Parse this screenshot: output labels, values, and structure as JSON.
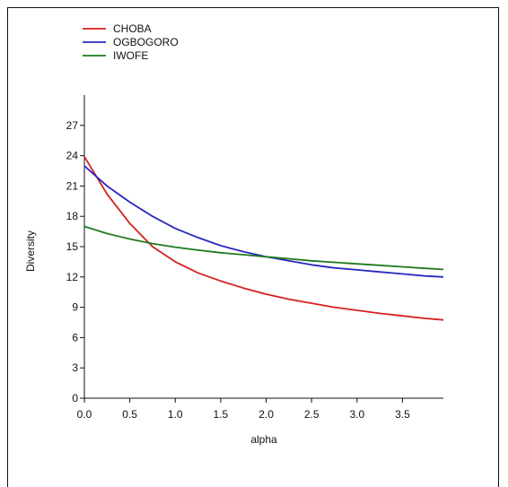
{
  "chart_data": {
    "type": "line",
    "xlabel": "alpha",
    "ylabel": "Diversity",
    "xlim": [
      0,
      3.95
    ],
    "ylim": [
      0,
      30
    ],
    "x_ticks": [
      0.0,
      0.5,
      1.0,
      1.5,
      2.0,
      2.5,
      3.0,
      3.5
    ],
    "x_tick_labels": [
      "0.0",
      "0.5",
      "1.0",
      "1.5",
      "2.0",
      "2.5",
      "3.0",
      "3.5"
    ],
    "y_ticks": [
      0,
      3,
      6,
      9,
      12,
      15,
      18,
      21,
      24,
      27
    ],
    "y_tick_labels": [
      "0",
      "3",
      "6",
      "9",
      "12",
      "15",
      "18",
      "21",
      "24",
      "27"
    ],
    "grid": false,
    "legend_position": "top-left",
    "x": [
      0.0,
      0.25,
      0.5,
      0.75,
      1.0,
      1.25,
      1.5,
      1.75,
      2.0,
      2.25,
      2.5,
      2.75,
      3.0,
      3.25,
      3.5,
      3.75,
      3.95
    ],
    "series": [
      {
        "name": "CHOBA",
        "color": "#d42020",
        "values": [
          23.9,
          20.2,
          17.3,
          15.0,
          13.5,
          12.4,
          11.6,
          10.9,
          10.3,
          9.8,
          9.4,
          9.0,
          8.7,
          8.4,
          8.15,
          7.9,
          7.75
        ]
      },
      {
        "name": "OGBOGORO",
        "color": "#2828c0",
        "values": [
          23.0,
          21.0,
          19.4,
          18.0,
          16.8,
          15.9,
          15.1,
          14.5,
          14.0,
          13.6,
          13.2,
          12.9,
          12.7,
          12.5,
          12.3,
          12.1,
          12.0
        ]
      },
      {
        "name": "IWOFE",
        "color": "#1e7a1e",
        "values": [
          17.0,
          16.3,
          15.75,
          15.3,
          14.95,
          14.65,
          14.4,
          14.2,
          14.0,
          13.8,
          13.6,
          13.45,
          13.3,
          13.15,
          13.0,
          12.85,
          12.75
        ]
      }
    ]
  }
}
